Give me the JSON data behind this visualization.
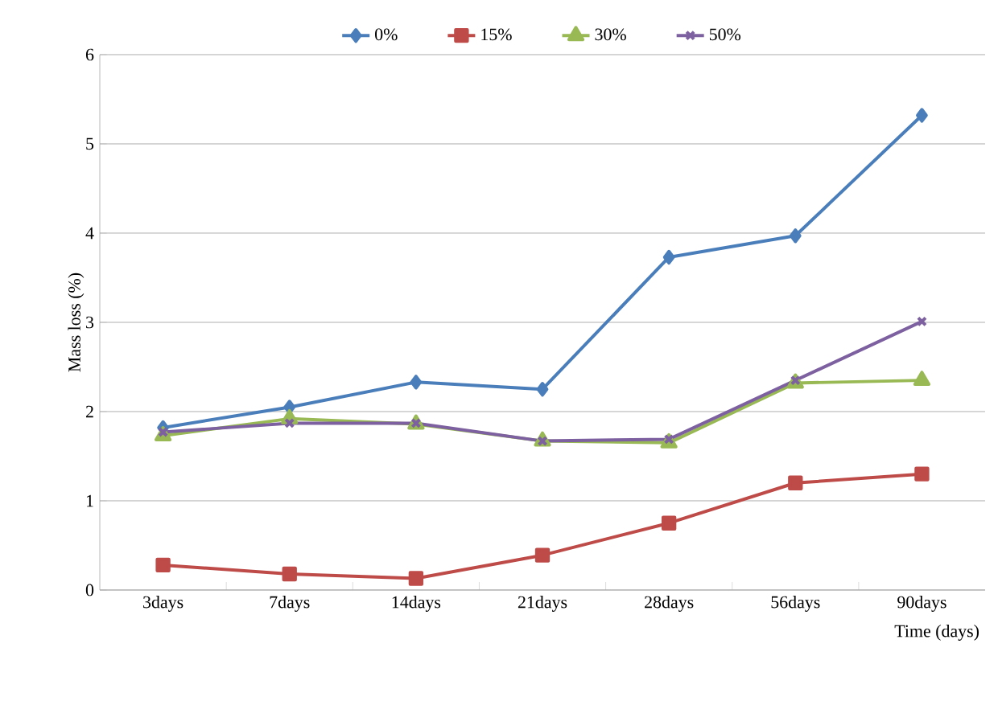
{
  "chart_data": {
    "type": "line",
    "xlabel": "Time (days)",
    "ylabel": "Mass loss (%)",
    "categories": [
      "3days",
      "7days",
      "14days",
      "21days",
      "28days",
      "56days",
      "90days"
    ],
    "series": [
      {
        "name": "0%",
        "color": "#4a7ebb",
        "marker": "diamond",
        "values": [
          1.82,
          2.05,
          2.33,
          2.25,
          3.73,
          3.97,
          5.32
        ]
      },
      {
        "name": "15%",
        "color": "#be4b48",
        "marker": "square",
        "values": [
          0.28,
          0.18,
          0.13,
          0.39,
          0.75,
          1.2,
          1.3
        ]
      },
      {
        "name": "30%",
        "color": "#98b954",
        "marker": "triangle",
        "values": [
          1.73,
          1.92,
          1.86,
          1.67,
          1.65,
          2.32,
          2.35
        ]
      },
      {
        "name": "50%",
        "color": "#7d60a0",
        "marker": "cross",
        "values": [
          1.77,
          1.87,
          1.87,
          1.67,
          1.69,
          2.35,
          3.01
        ]
      }
    ],
    "ylim": [
      0,
      6
    ],
    "yticks": [
      0,
      1,
      2,
      3,
      4,
      5,
      6
    ],
    "grid": "y",
    "legend": "top",
    "line_style": "solid"
  }
}
